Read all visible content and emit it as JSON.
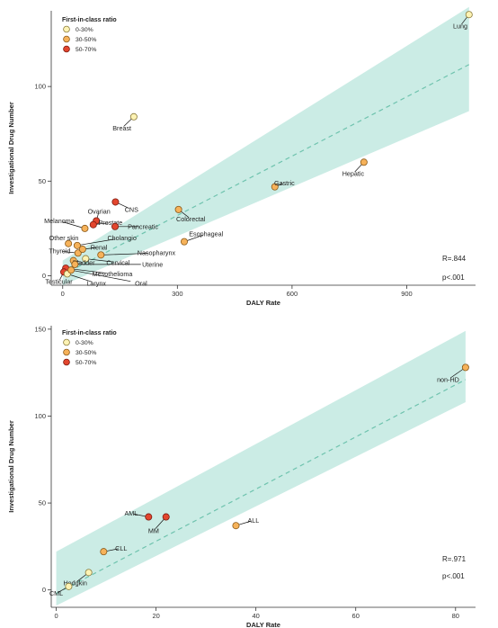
{
  "chart_data": [
    {
      "type": "scatter",
      "xlabel": "DALY Rate",
      "ylabel": "Investigational Drug Number",
      "xlim": [
        -30,
        1080
      ],
      "ylim": [
        -5,
        140
      ],
      "xticks": [
        0,
        300,
        600,
        900
      ],
      "yticks": [
        0,
        50,
        100
      ],
      "grid": false,
      "legend": {
        "title": "First-in-class ratio",
        "placement": "top-left",
        "items": [
          {
            "label": "0-30%",
            "color": "#fdf3b4"
          },
          {
            "label": "30-50%",
            "color": "#f6b25a"
          },
          {
            "label": "50-70%",
            "color": "#e3462e"
          }
        ]
      },
      "fit": {
        "slope": 0.1045,
        "intercept": 0.5
      },
      "band": {
        "upper_start": 8,
        "upper_end": 142,
        "lower_start": -5,
        "lower_end": 87
      },
      "stats": {
        "r": "R=.844",
        "p": "p<.001"
      },
      "points": [
        {
          "label": "Lung",
          "x": 1063,
          "y": 138,
          "group": 0,
          "lx": 1040,
          "ly": 132
        },
        {
          "label": "Breast",
          "x": 186,
          "y": 84,
          "group": 0,
          "lx": 155,
          "ly": 78
        },
        {
          "label": "Hepatic",
          "x": 788,
          "y": 60,
          "group": 1,
          "lx": 760,
          "ly": 54
        },
        {
          "label": "Gastric",
          "x": 555,
          "y": 47,
          "group": 1,
          "lx": 580,
          "ly": 49
        },
        {
          "label": "CNS",
          "x": 138,
          "y": 39,
          "group": 2,
          "lx": 180,
          "ly": 35
        },
        {
          "label": "Colorectal",
          "x": 303,
          "y": 35,
          "group": 1,
          "lx": 335,
          "ly": 30
        },
        {
          "label": "Ovarian",
          "x": 88,
          "y": 29,
          "group": 2,
          "lx": 95,
          "ly": 34
        },
        {
          "label": "Melanoma",
          "x": 58,
          "y": 25,
          "group": 1,
          "lx": -9,
          "ly": 29
        },
        {
          "label": "Prostate",
          "x": 80,
          "y": 27,
          "group": 2,
          "lx": 125,
          "ly": 28
        },
        {
          "label": "Pancreatic",
          "x": 137,
          "y": 26,
          "group": 2,
          "lx": 210,
          "ly": 26
        },
        {
          "label": "Cholangio",
          "x": 38,
          "y": 16,
          "group": 1,
          "lx": 155,
          "ly": 20
        },
        {
          "label": "Other skin",
          "x": 15,
          "y": 17,
          "group": 1,
          "lx": 3,
          "ly": 20
        },
        {
          "label": "Esophageal",
          "x": 318,
          "y": 18,
          "group": 1,
          "lx": 375,
          "ly": 22
        },
        {
          "label": "Thyroid",
          "x": 40,
          "y": 12,
          "group": 1,
          "lx": -8,
          "ly": 13
        },
        {
          "label": "Renal",
          "x": 52,
          "y": 14,
          "group": 1,
          "lx": 95,
          "ly": 15
        },
        {
          "label": "Nasopharynx",
          "x": 100,
          "y": 11,
          "group": 1,
          "lx": 245,
          "ly": 12
        },
        {
          "label": "Cervical",
          "x": 60,
          "y": 9,
          "group": 0,
          "lx": 145,
          "ly": 7
        },
        {
          "label": "Bladder",
          "x": 28,
          "y": 8,
          "group": 1,
          "lx": 55,
          "ly": 7
        },
        {
          "label": "Uterine",
          "x": 32,
          "y": 6,
          "group": 1,
          "lx": 235,
          "ly": 6
        },
        {
          "label": "Mesothelioma",
          "x": 8,
          "y": 4,
          "group": 2,
          "lx": 130,
          "ly": 1
        },
        {
          "label": "Testicular",
          "x": 3,
          "y": 2,
          "group": 2,
          "lx": -10,
          "ly": -3
        },
        {
          "label": "Larynx",
          "x": 12,
          "y": 1,
          "group": 0,
          "lx": 88,
          "ly": -4
        },
        {
          "label": "Oral",
          "x": 22,
          "y": 3,
          "group": 1,
          "lx": 205,
          "ly": -4
        }
      ]
    },
    {
      "type": "scatter",
      "xlabel": "DALY Rate",
      "ylabel": "Investigational Drug Number",
      "xlim": [
        -1,
        84
      ],
      "ylim": [
        -10,
        152
      ],
      "xticks": [
        0,
        20,
        40,
        60,
        80
      ],
      "yticks": [
        0,
        50,
        100,
        150
      ],
      "grid": false,
      "legend": {
        "title": "First-in-class ratio",
        "placement": "top-left",
        "items": [
          {
            "label": "0-30%",
            "color": "#fdf3b4"
          },
          {
            "label": "30-50%",
            "color": "#f6b25a"
          },
          {
            "label": "50-70%",
            "color": "#e3462e"
          }
        ]
      },
      "fit": {
        "slope": 1.5,
        "intercept": -2
      },
      "band": {
        "upper_start": 22,
        "upper_end": 149,
        "lower_start": -9,
        "lower_end": 108
      },
      "stats": {
        "r": "R=.971",
        "p": "p<.001"
      },
      "points": [
        {
          "label": "non-HD",
          "x": 82,
          "y": 128,
          "group": 1,
          "lx": 78.5,
          "ly": 121
        },
        {
          "label": "ALL",
          "x": 36,
          "y": 37,
          "group": 1,
          "lx": 39.5,
          "ly": 40
        },
        {
          "label": "AML",
          "x": 18.5,
          "y": 42,
          "group": 2,
          "lx": 15,
          "ly": 44
        },
        {
          "label": "MM",
          "x": 22,
          "y": 42,
          "group": 2,
          "lx": 19.5,
          "ly": 34
        },
        {
          "label": "CLL",
          "x": 9.5,
          "y": 22,
          "group": 1,
          "lx": 13,
          "ly": 24
        },
        {
          "label": "Hodgkin",
          "x": 6.5,
          "y": 10,
          "group": 0,
          "lx": 3.8,
          "ly": 4
        },
        {
          "label": "CML",
          "x": 2.5,
          "y": 2,
          "group": 0,
          "lx": 0,
          "ly": -2
        }
      ]
    }
  ]
}
